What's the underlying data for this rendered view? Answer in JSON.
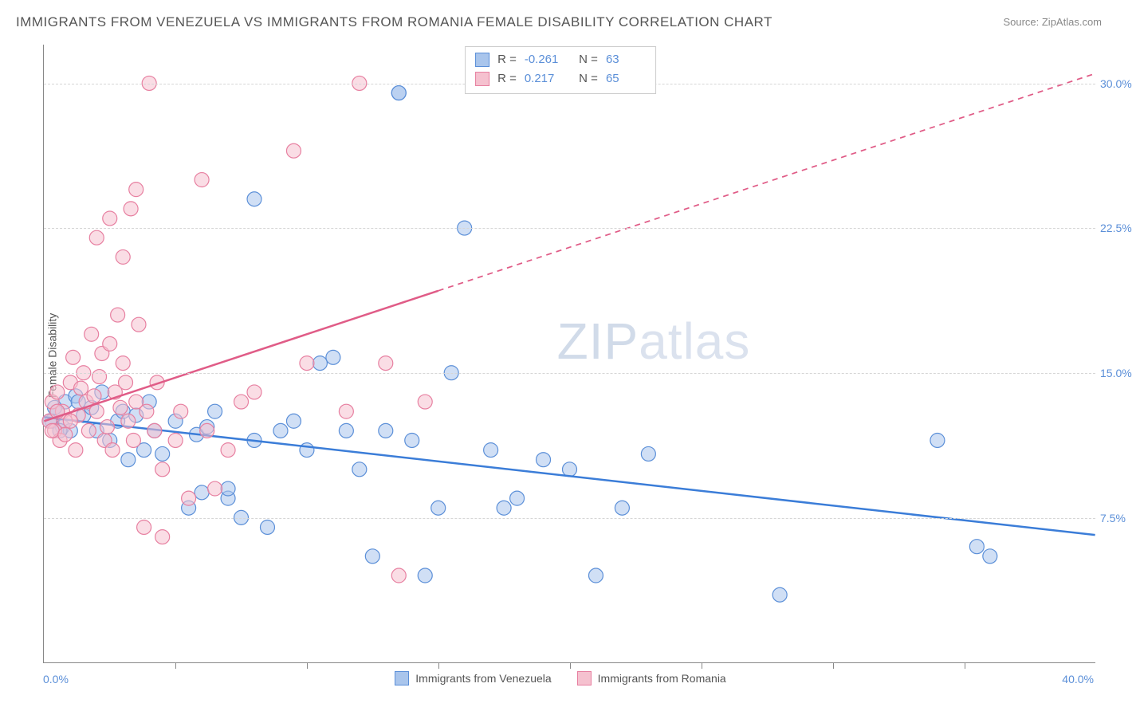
{
  "title": "IMMIGRANTS FROM VENEZUELA VS IMMIGRANTS FROM ROMANIA FEMALE DISABILITY CORRELATION CHART",
  "source": "Source: ZipAtlas.com",
  "ylabel": "Female Disability",
  "watermark_bold": "ZIP",
  "watermark_thin": "atlas",
  "x_min_label": "0.0%",
  "x_max_label": "40.0%",
  "chart": {
    "type": "scatter",
    "xlim": [
      0,
      40
    ],
    "ylim": [
      0,
      32
    ],
    "ytick_step": 7.5,
    "ytick_labels": [
      "7.5%",
      "15.0%",
      "22.5%",
      "30.0%"
    ],
    "xtick_positions": [
      5,
      10,
      15,
      20,
      25,
      30,
      35
    ],
    "background_color": "#ffffff",
    "grid_color": "#d6d6d6",
    "axis_color": "#888888",
    "label_color": "#555555",
    "tick_label_color": "#5b8fd8",
    "marker_radius": 9,
    "marker_opacity": 0.55,
    "line_width": 2.5,
    "series": [
      {
        "name": "Immigrants from Venezuela",
        "fill": "#a9c5ec",
        "stroke": "#5b8fd8",
        "line_color": "#3b7dd8",
        "r_value": "-0.261",
        "n_value": "63",
        "trend": {
          "x1": 0,
          "y1": 12.7,
          "x2": 40,
          "y2": 6.6,
          "dashed_from_x": 40
        },
        "points": [
          [
            0.3,
            12.5
          ],
          [
            0.5,
            13.0
          ],
          [
            0.7,
            12.2
          ],
          [
            0.8,
            13.5
          ],
          [
            1.0,
            12.0
          ],
          [
            1.2,
            13.8
          ],
          [
            1.5,
            12.8
          ],
          [
            1.8,
            13.2
          ],
          [
            2.0,
            12.0
          ],
          [
            2.2,
            14.0
          ],
          [
            2.5,
            11.5
          ],
          [
            2.8,
            12.5
          ],
          [
            3.0,
            13.0
          ],
          [
            3.2,
            10.5
          ],
          [
            3.5,
            12.8
          ],
          [
            3.8,
            11.0
          ],
          [
            4.0,
            13.5
          ],
          [
            4.2,
            12.0
          ],
          [
            4.5,
            10.8
          ],
          [
            5.0,
            12.5
          ],
          [
            5.5,
            8.0
          ],
          [
            5.8,
            11.8
          ],
          [
            6.0,
            8.8
          ],
          [
            6.2,
            12.2
          ],
          [
            6.5,
            13.0
          ],
          [
            7.0,
            8.5
          ],
          [
            7.0,
            9.0
          ],
          [
            7.5,
            7.5
          ],
          [
            8.0,
            24.0
          ],
          [
            8.0,
            11.5
          ],
          [
            8.5,
            7.0
          ],
          [
            9.0,
            12.0
          ],
          [
            9.5,
            12.5
          ],
          [
            10.0,
            11.0
          ],
          [
            10.5,
            15.5
          ],
          [
            11.0,
            15.8
          ],
          [
            11.5,
            12.0
          ],
          [
            12.0,
            10.0
          ],
          [
            12.5,
            5.5
          ],
          [
            13.0,
            12.0
          ],
          [
            13.5,
            29.5
          ],
          [
            14.0,
            11.5
          ],
          [
            14.5,
            4.5
          ],
          [
            15.0,
            8.0
          ],
          [
            15.5,
            15.0
          ],
          [
            16.0,
            22.5
          ],
          [
            17.0,
            11.0
          ],
          [
            17.5,
            8.0
          ],
          [
            18.0,
            8.5
          ],
          [
            19.0,
            10.5
          ],
          [
            20.0,
            10.0
          ],
          [
            21.0,
            4.5
          ],
          [
            22.0,
            8.0
          ],
          [
            23.0,
            10.8
          ],
          [
            28.0,
            3.5
          ],
          [
            34.0,
            11.5
          ],
          [
            35.5,
            6.0
          ],
          [
            36.0,
            5.5
          ],
          [
            0.2,
            12.5
          ],
          [
            0.4,
            13.2
          ],
          [
            0.6,
            12.0
          ],
          [
            1.3,
            13.5
          ],
          [
            13.5,
            29.5
          ]
        ]
      },
      {
        "name": "Immigrants from Romania",
        "fill": "#f5c1cf",
        "stroke": "#e77fa0",
        "line_color": "#e05c87",
        "r_value": "0.217",
        "n_value": "65",
        "trend": {
          "x1": 0,
          "y1": 12.5,
          "x2": 40,
          "y2": 30.5,
          "dashed_from_x": 15
        },
        "points": [
          [
            0.2,
            12.5
          ],
          [
            0.3,
            13.5
          ],
          [
            0.4,
            12.0
          ],
          [
            0.5,
            14.0
          ],
          [
            0.6,
            11.5
          ],
          [
            0.7,
            13.0
          ],
          [
            0.8,
            12.5
          ],
          [
            1.0,
            14.5
          ],
          [
            1.2,
            11.0
          ],
          [
            1.3,
            12.8
          ],
          [
            1.5,
            15.0
          ],
          [
            1.6,
            13.5
          ],
          [
            1.8,
            17.0
          ],
          [
            2.0,
            13.0
          ],
          [
            2.0,
            22.0
          ],
          [
            2.2,
            16.0
          ],
          [
            2.3,
            11.5
          ],
          [
            2.5,
            16.5
          ],
          [
            2.5,
            23.0
          ],
          [
            2.7,
            14.0
          ],
          [
            2.8,
            18.0
          ],
          [
            3.0,
            21.0
          ],
          [
            3.0,
            15.5
          ],
          [
            3.2,
            12.5
          ],
          [
            3.3,
            23.5
          ],
          [
            3.5,
            13.5
          ],
          [
            3.5,
            24.5
          ],
          [
            3.8,
            7.0
          ],
          [
            4.0,
            30.0
          ],
          [
            4.2,
            12.0
          ],
          [
            4.5,
            10.0
          ],
          [
            4.5,
            6.5
          ],
          [
            5.0,
            11.5
          ],
          [
            5.5,
            8.5
          ],
          [
            6.0,
            25.0
          ],
          [
            6.5,
            9.0
          ],
          [
            7.0,
            11.0
          ],
          [
            8.0,
            14.0
          ],
          [
            9.5,
            26.5
          ],
          [
            10.0,
            15.5
          ],
          [
            11.5,
            13.0
          ],
          [
            12.0,
            30.0
          ],
          [
            13.0,
            15.5
          ],
          [
            13.5,
            4.5
          ],
          [
            14.5,
            13.5
          ],
          [
            0.3,
            12.0
          ],
          [
            0.5,
            13.0
          ],
          [
            0.8,
            11.8
          ],
          [
            1.0,
            12.5
          ],
          [
            1.1,
            15.8
          ],
          [
            1.4,
            14.2
          ],
          [
            1.7,
            12.0
          ],
          [
            1.9,
            13.8
          ],
          [
            2.1,
            14.8
          ],
          [
            2.4,
            12.2
          ],
          [
            2.6,
            11.0
          ],
          [
            2.9,
            13.2
          ],
          [
            3.1,
            14.5
          ],
          [
            3.4,
            11.5
          ],
          [
            3.6,
            17.5
          ],
          [
            3.9,
            13.0
          ],
          [
            4.3,
            14.5
          ],
          [
            5.2,
            13.0
          ],
          [
            6.2,
            12.0
          ],
          [
            7.5,
            13.5
          ]
        ]
      }
    ]
  },
  "bottom_legend": [
    {
      "label": "Immigrants from Venezuela",
      "fill": "#a9c5ec",
      "stroke": "#5b8fd8"
    },
    {
      "label": "Immigrants from Romania",
      "fill": "#f5c1cf",
      "stroke": "#e77fa0"
    }
  ]
}
